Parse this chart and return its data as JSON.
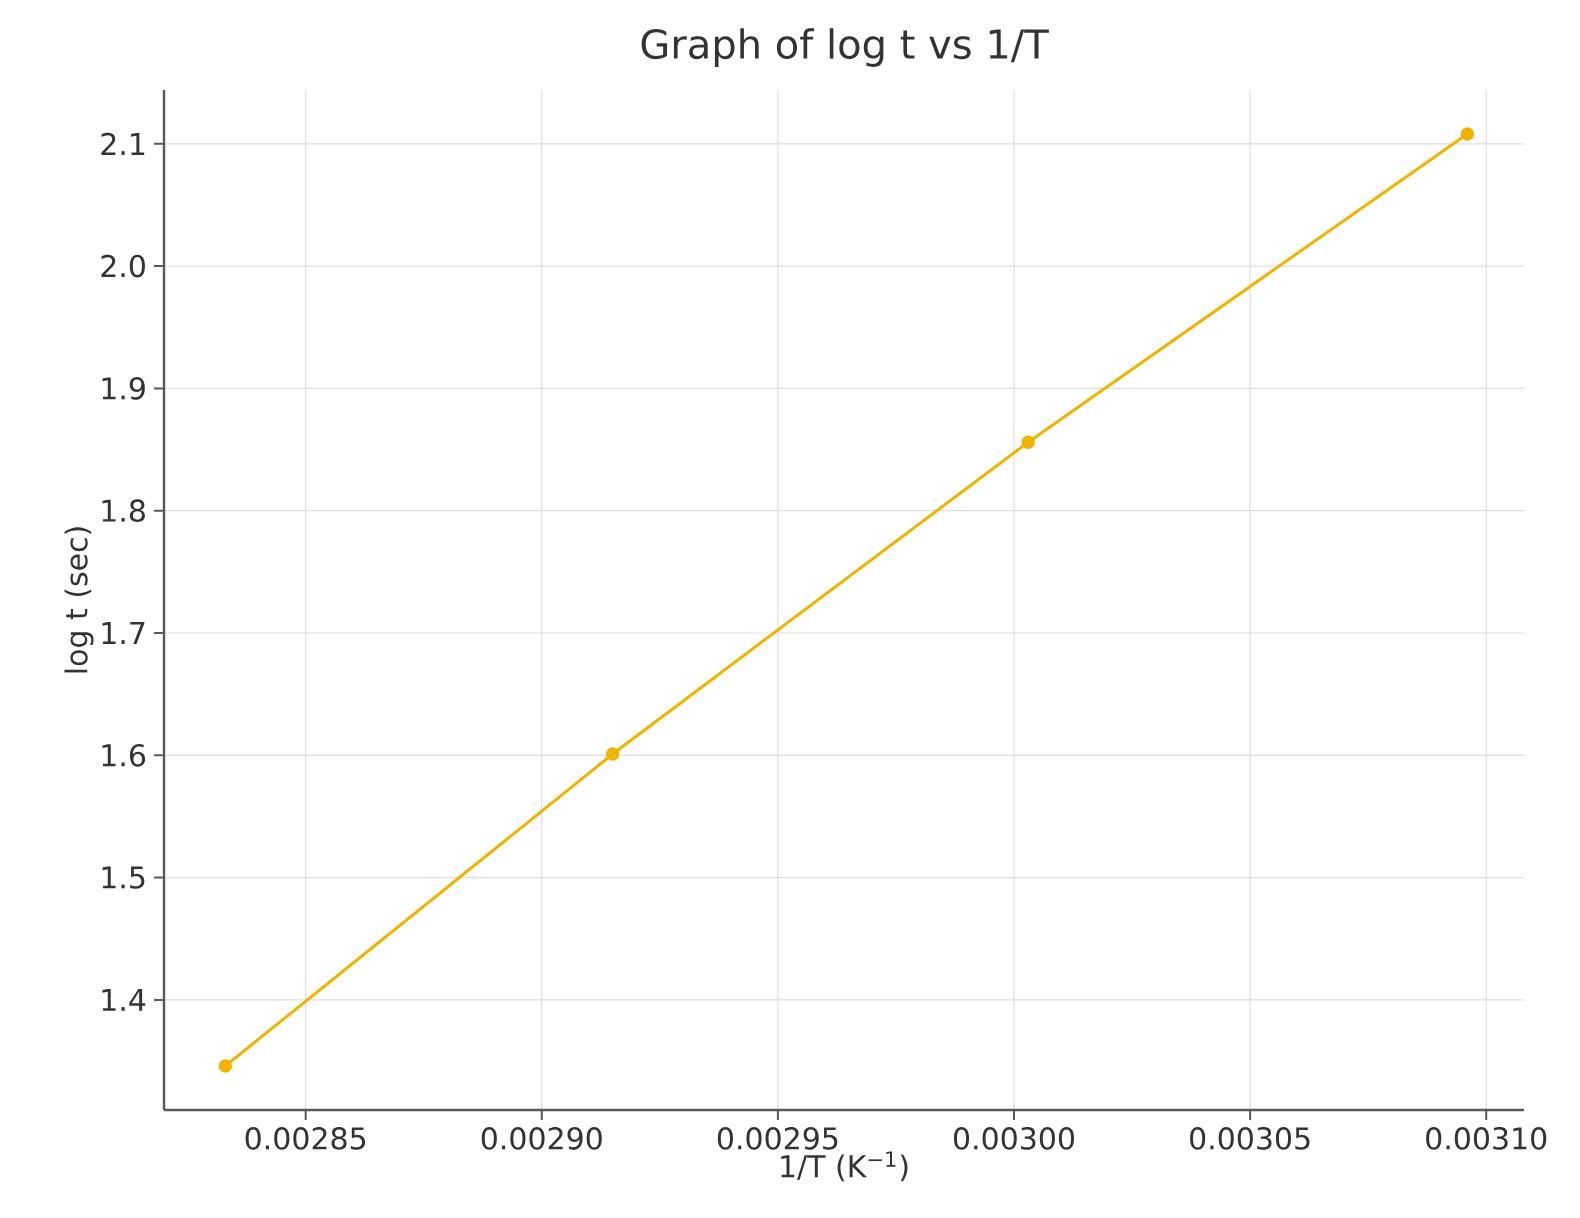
{
  "chart_data": {
    "type": "line",
    "title": "Graph of log t vs 1/T",
    "xlabel": "1/T (K$^{−1}$)",
    "ylabel": "log t (sec)",
    "x": [
      0.002833,
      0.002915,
      0.003003,
      0.003096
    ],
    "series": [
      {
        "color": "#f0b400",
        "values": [
          1.346,
          1.601,
          1.856,
          2.108
        ]
      }
    ],
    "xlim": [
      0.00282,
      0.003108
    ],
    "ylim": [
      1.31,
      2.144
    ],
    "xticks": [
      0.00285,
      {
        "value": 0.0029,
        "label": "0.00290"
      },
      0.00295,
      {
        "value": 0.003,
        "label": "0.00300"
      },
      0.00305,
      {
        "value": 0.0031,
        "label": "0.00310"
      }
    ],
    "yticks": [
      1.4,
      1.5,
      1.6,
      1.7,
      1.8,
      1.9,
      {
        "value": 2.0,
        "label": "2.0"
      },
      2.1
    ],
    "grid": true,
    "marker": "circle"
  }
}
